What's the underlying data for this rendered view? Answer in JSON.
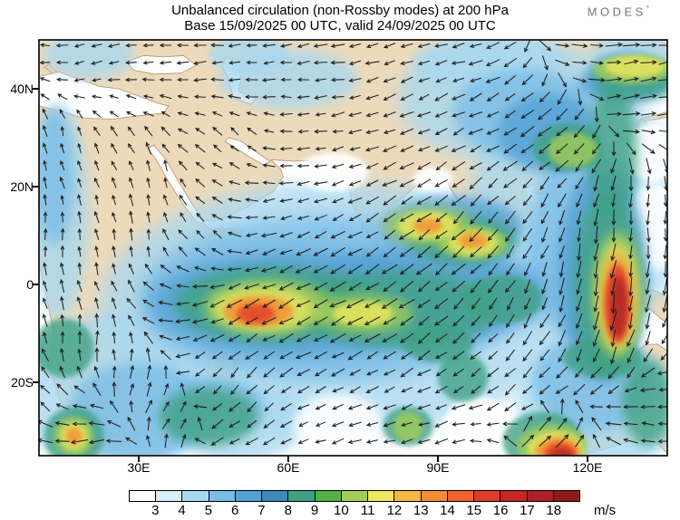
{
  "logo": {
    "text": "MODES",
    "mark": "°"
  },
  "map": {
    "land_color": "#ecdabb",
    "sea_color": "#ffffff",
    "coast_color": "#b2906a",
    "arrow_color": "#161616",
    "frame_color": "#000000"
  },
  "chart_data": {
    "type": "vector-field-map",
    "title": "Unbalanced circulation (non-Rossby modes) at 200 hPa",
    "subtitle": "Base 15/09/2025 00 UTC, valid 24/09/2025 00 UTC",
    "field_name": "unbalanced wind speed",
    "unit": "m/s",
    "projection_extent": {
      "lon": [
        10,
        136
      ],
      "lat": [
        -35,
        50
      ]
    },
    "axes": {
      "lat_ticks": [
        {
          "label": "40N",
          "lat": 40
        },
        {
          "label": "20N",
          "lat": 20
        },
        {
          "label": "0",
          "lat": 0
        },
        {
          "label": "20S",
          "lat": -20
        }
      ],
      "lon_ticks": [
        {
          "label": "30E",
          "lon": 30
        },
        {
          "label": "60E",
          "lon": 60
        },
        {
          "label": "90E",
          "lon": 90
        },
        {
          "label": "120E",
          "lon": 120
        }
      ]
    },
    "colorbar": {
      "levels": [
        3,
        4,
        5,
        6,
        7,
        8,
        9,
        10,
        11,
        12,
        13,
        14,
        15,
        16,
        17,
        18
      ],
      "colors": [
        "#ffffff",
        "#d9edf9",
        "#a8d8f0",
        "#7abde6",
        "#55a0d4",
        "#3d89b8",
        "#41a183",
        "#53b14a",
        "#a3cd56",
        "#efe95b",
        "#f6b842",
        "#f68b33",
        "#f2632b",
        "#e23b26",
        "#cc2424",
        "#ab2025",
        "#8e1a1d"
      ],
      "unit": "m/s"
    },
    "speed_features": [
      [
        70,
        -5,
        48,
        26,
        4
      ],
      [
        118,
        15,
        22,
        26,
        4
      ],
      [
        25,
        -22,
        20,
        16,
        4
      ],
      [
        122,
        -25,
        16,
        14,
        4
      ],
      [
        104,
        38,
        22,
        13,
        4
      ],
      [
        14,
        15,
        6,
        22,
        4
      ],
      [
        129,
        45,
        9,
        7,
        4
      ],
      [
        50,
        -28,
        14,
        8,
        4
      ],
      [
        60,
        42,
        14,
        6,
        4
      ],
      [
        20,
        47,
        9,
        5,
        4
      ],
      [
        52,
        47,
        8,
        4,
        4
      ],
      [
        100,
        45,
        15,
        6,
        4
      ],
      [
        68,
        -3,
        38,
        17,
        5
      ],
      [
        120,
        8,
        12,
        20,
        5
      ],
      [
        107,
        35,
        14,
        9,
        5
      ],
      [
        30,
        -26,
        14,
        10,
        5
      ],
      [
        13,
        22,
        4,
        14,
        5
      ],
      [
        128,
        43,
        8,
        5,
        5
      ],
      [
        45,
        -25,
        10,
        6,
        5
      ],
      [
        121,
        -20,
        12,
        10,
        5
      ],
      [
        62,
        -4,
        30,
        11,
        6
      ],
      [
        88,
        -2,
        24,
        10,
        6
      ],
      [
        123,
        2,
        9,
        22,
        6
      ],
      [
        112,
        31,
        10,
        8,
        6
      ],
      [
        93,
        12,
        14,
        6,
        6
      ],
      [
        127,
        41,
        9,
        4,
        6
      ],
      [
        57,
        -4,
        20,
        8,
        8
      ],
      [
        82,
        -5,
        20,
        8,
        8
      ],
      [
        95,
        9,
        11,
        5,
        8
      ],
      [
        124,
        0,
        7,
        19,
        8
      ],
      [
        125,
        27,
        5,
        14,
        8
      ],
      [
        130,
        42,
        9,
        4,
        8
      ],
      [
        116,
        28,
        7,
        5,
        8
      ],
      [
        44,
        -27,
        10,
        6,
        8
      ],
      [
        17,
        -31,
        6,
        6,
        8
      ],
      [
        111,
        -32,
        8,
        6,
        8
      ],
      [
        132,
        -24,
        5,
        9,
        8
      ],
      [
        15,
        -13,
        6,
        6,
        8
      ],
      [
        123,
        -15,
        8,
        4,
        8
      ],
      [
        103,
        -3,
        8,
        5,
        8
      ],
      [
        90,
        -12,
        7,
        4,
        8
      ],
      [
        95,
        -19,
        5,
        5,
        8
      ],
      [
        84,
        -29,
        5,
        4,
        8
      ],
      [
        56,
        -4.5,
        13,
        5.5,
        10
      ],
      [
        75,
        -6,
        10,
        4,
        10
      ],
      [
        88,
        12,
        9,
        4,
        10
      ],
      [
        97,
        8.5,
        7,
        3.5,
        10
      ],
      [
        126,
        -2,
        5,
        13,
        10
      ],
      [
        129,
        44,
        8,
        3,
        10
      ],
      [
        117,
        27.5,
        5,
        3.5,
        10
      ],
      [
        17,
        -31,
        4,
        4,
        10
      ],
      [
        84,
        -29,
        3,
        3,
        10
      ],
      [
        113,
        -33,
        7,
        4.5,
        10
      ],
      [
        55,
        -5,
        10,
        4.5,
        11
      ],
      [
        88,
        12,
        6,
        2.8,
        11
      ],
      [
        97,
        8.5,
        5,
        2.5,
        11
      ],
      [
        126,
        -2.5,
        4,
        11,
        11
      ],
      [
        129.5,
        44.5,
        6,
        2.2,
        11
      ],
      [
        17,
        -31,
        2.8,
        2.8,
        11
      ],
      [
        113.5,
        -33.5,
        5.5,
        3.5,
        11
      ],
      [
        75,
        -6,
        6,
        2.5,
        11
      ],
      [
        54,
        -5.5,
        7,
        3.2,
        13
      ],
      [
        126,
        -3,
        3.2,
        9.5,
        13
      ],
      [
        114,
        -34,
        4.5,
        2.8,
        13
      ],
      [
        97,
        9,
        3,
        1.6,
        13
      ],
      [
        88,
        12,
        3,
        1.5,
        13
      ],
      [
        17,
        -31,
        1.7,
        1.7,
        13
      ],
      [
        53.5,
        -6,
        3.8,
        2,
        15
      ],
      [
        126,
        -4,
        2.6,
        8,
        15
      ],
      [
        114.5,
        -34.5,
        3.2,
        2.2,
        15
      ],
      [
        126.2,
        -4.5,
        1.7,
        6.2,
        17
      ],
      [
        114.8,
        -35,
        2.2,
        1.4,
        17
      ]
    ],
    "calm_patches": [
      [
        69,
        23,
        7,
        4
      ],
      [
        89,
        21.5,
        4,
        2.5
      ],
      [
        70,
        -29,
        9,
        6.5
      ],
      [
        98,
        -29,
        7,
        6
      ],
      [
        134,
        12,
        7,
        9
      ],
      [
        133,
        27,
        5,
        6
      ]
    ],
    "flow_vectors": [
      [
        20,
        44,
        205,
        4
      ],
      [
        45,
        44,
        190,
        5
      ],
      [
        70,
        45,
        185,
        6
      ],
      [
        95,
        46,
        180,
        5
      ],
      [
        118,
        47,
        5,
        7
      ],
      [
        131,
        43,
        15,
        10
      ],
      [
        135,
        47,
        10,
        8
      ],
      [
        15,
        30,
        85,
        4
      ],
      [
        33,
        22,
        80,
        5
      ],
      [
        50,
        30,
        100,
        4
      ],
      [
        63,
        30,
        170,
        4
      ],
      [
        75,
        27,
        190,
        5
      ],
      [
        88,
        27,
        205,
        6
      ],
      [
        100,
        30,
        195,
        7
      ],
      [
        112,
        30,
        205,
        9
      ],
      [
        120,
        32,
        215,
        9
      ],
      [
        127,
        36,
        25,
        9
      ],
      [
        134,
        37,
        20,
        8
      ],
      [
        14,
        10,
        75,
        4
      ],
      [
        30,
        8,
        70,
        4
      ],
      [
        45,
        8,
        85,
        5
      ],
      [
        55,
        3,
        205,
        7
      ],
      [
        50,
        -5,
        205,
        10
      ],
      [
        60,
        -6,
        210,
        13
      ],
      [
        72,
        -4,
        207,
        11
      ],
      [
        82,
        -2,
        212,
        10
      ],
      [
        90,
        3,
        220,
        11
      ],
      [
        96,
        11,
        225,
        12
      ],
      [
        103,
        5,
        235,
        8
      ],
      [
        110,
        0,
        250,
        7
      ],
      [
        117,
        3,
        260,
        8
      ],
      [
        124,
        6,
        268,
        11
      ],
      [
        126,
        -4,
        268,
        16
      ],
      [
        125,
        -14,
        258,
        12
      ],
      [
        130,
        8,
        275,
        6
      ],
      [
        134,
        -2,
        262,
        8
      ],
      [
        135,
        13,
        290,
        4
      ],
      [
        18,
        -12,
        70,
        6
      ],
      [
        30,
        -20,
        50,
        6
      ],
      [
        38,
        -27,
        40,
        6
      ],
      [
        17,
        -30,
        205,
        10
      ],
      [
        12,
        -25,
        120,
        7
      ],
      [
        48,
        -18,
        255,
        6
      ],
      [
        55,
        -25,
        230,
        5
      ],
      [
        65,
        -29,
        185,
        4
      ],
      [
        80,
        -29,
        180,
        4
      ],
      [
        90,
        -25,
        200,
        5
      ],
      [
        98,
        -29,
        140,
        4
      ],
      [
        102,
        -20,
        230,
        6
      ],
      [
        113,
        -33,
        35,
        14
      ],
      [
        118,
        -28,
        60,
        8
      ],
      [
        127,
        -27,
        160,
        7
      ],
      [
        133,
        -30,
        170,
        6
      ],
      [
        135,
        -20,
        140,
        6
      ],
      [
        122,
        -20,
        210,
        5
      ]
    ]
  }
}
